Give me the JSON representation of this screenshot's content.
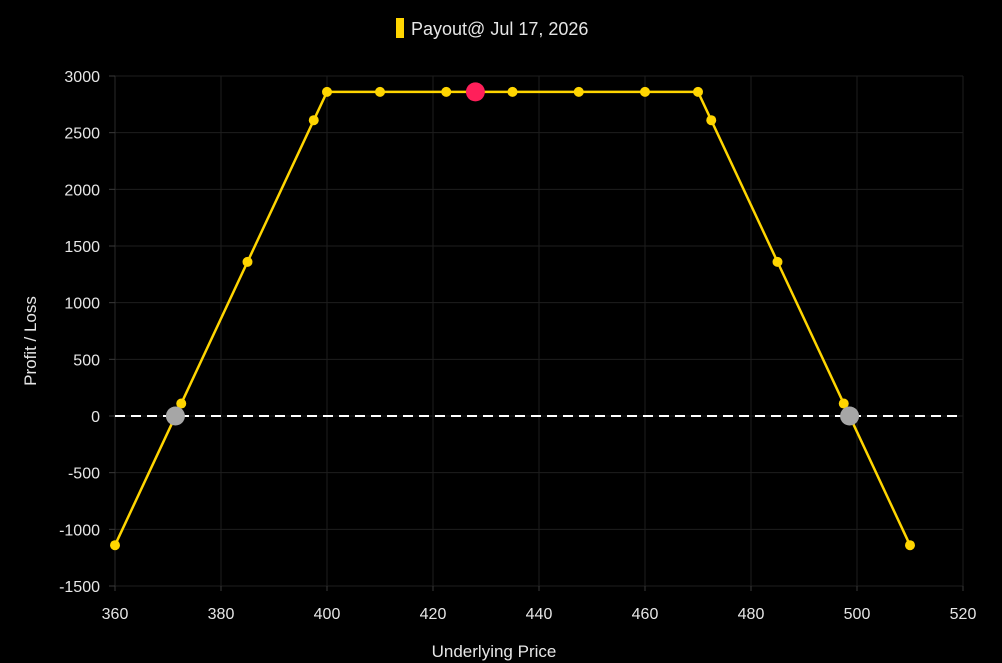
{
  "chart_data": {
    "type": "line",
    "title": "",
    "xlabel": "Underlying Price",
    "ylabel": "Profit / Loss",
    "xlim": [
      360,
      520
    ],
    "ylim": [
      -1500,
      3000
    ],
    "x_ticks": [
      360,
      380,
      400,
      420,
      440,
      460,
      480,
      500,
      520
    ],
    "y_ticks": [
      -1500,
      -1000,
      -500,
      0,
      500,
      1000,
      1500,
      2000,
      2500,
      3000
    ],
    "grid": true,
    "legend_position": "top-center",
    "series": [
      {
        "name": "Payout@ Jul 17, 2026",
        "color": "#FFD500",
        "points": [
          {
            "x": 360,
            "y": -1140
          },
          {
            "x": 372.5,
            "y": 110
          },
          {
            "x": 385,
            "y": 1360
          },
          {
            "x": 397.5,
            "y": 2610
          },
          {
            "x": 400,
            "y": 2860
          },
          {
            "x": 410,
            "y": 2860
          },
          {
            "x": 422.5,
            "y": 2860
          },
          {
            "x": 435,
            "y": 2860
          },
          {
            "x": 447.5,
            "y": 2860
          },
          {
            "x": 460,
            "y": 2860
          },
          {
            "x": 470,
            "y": 2860
          },
          {
            "x": 472.5,
            "y": 2610
          },
          {
            "x": 485,
            "y": 1360
          },
          {
            "x": 497.5,
            "y": 110
          },
          {
            "x": 510,
            "y": -1140
          }
        ]
      }
    ],
    "markers": [
      {
        "name": "current-price-marker",
        "x": 428,
        "y": 2860,
        "color": "#FF1F5A"
      },
      {
        "name": "breakeven-low-marker",
        "x": 371.4,
        "y": 0,
        "color": "#A6A6A6"
      },
      {
        "name": "breakeven-high-marker",
        "x": 498.6,
        "y": 0,
        "color": "#A6A6A6"
      }
    ],
    "zero_line_color": "#FFFFFF"
  }
}
